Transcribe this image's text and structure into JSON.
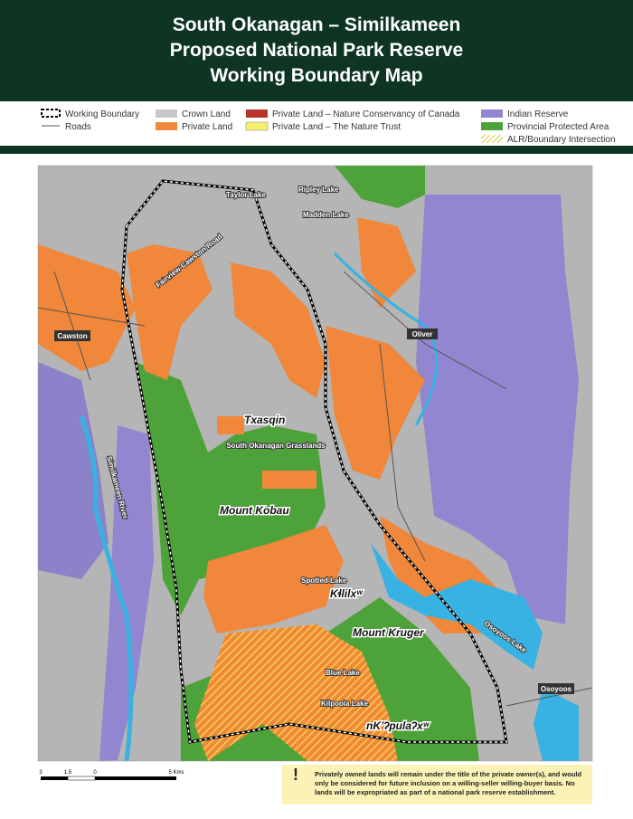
{
  "header": {
    "title_lines": [
      "South Okanagan – Similkameen",
      "Proposed National Park Reserve",
      "Working Boundary Map"
    ]
  },
  "legend": {
    "items": [
      {
        "label": "Working Boundary"
      },
      {
        "label": "Roads"
      },
      {
        "label": "Crown Land"
      },
      {
        "label": "Private Land"
      },
      {
        "label": "Private Land – Nature Conservancy of Canada"
      },
      {
        "label": "Private Land – The Nature Trust"
      },
      {
        "label": "Indian Reserve"
      },
      {
        "label": "Provincial Protected Area"
      },
      {
        "label": "ALR/Boundary Intersection"
      }
    ]
  },
  "map": {
    "labels": [
      {
        "text": "Taylor Lake"
      },
      {
        "text": "Ripley Lake"
      },
      {
        "text": "Madden Lake"
      },
      {
        "text": "Fairview-Cawston Road"
      },
      {
        "text": "Cawston"
      },
      {
        "text": "Oliver"
      },
      {
        "text": "Txasqin"
      },
      {
        "text": "South Okanagan Grasslands"
      },
      {
        "text": "Similkameen River"
      },
      {
        "text": "Mount Kobau"
      },
      {
        "text": "Spotted Lake"
      },
      {
        "text": "Kɬlilxʷ"
      },
      {
        "text": "Mount Kruger"
      },
      {
        "text": "Blue Lake"
      },
      {
        "text": "Kilpoola Lake"
      },
      {
        "text": "Osoyoos Lake"
      },
      {
        "text": "Osoyoos"
      },
      {
        "text": "nKʼʔpulaʔxʷ"
      }
    ]
  },
  "scale": {
    "ticks": [
      "3",
      "1.5",
      "0",
      "5 Kms"
    ]
  },
  "notice": {
    "text": "Privately owned lands will remain under the title of the private owner(s), and would only be considered for future inclusion on a willing-seller willing-buyer basis. No lands will be expropriated as part of a national park reserve establishment."
  }
}
